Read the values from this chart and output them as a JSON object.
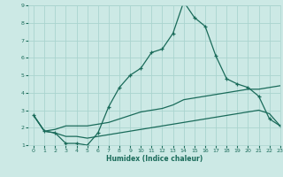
{
  "xlabel": "Humidex (Indice chaleur)",
  "bg_color": "#cce9e5",
  "grid_color": "#aad4cf",
  "line_color": "#1a6b5a",
  "xlim": [
    -0.5,
    23
  ],
  "ylim": [
    1,
    9
  ],
  "xticks": [
    0,
    1,
    2,
    3,
    4,
    5,
    6,
    7,
    8,
    9,
    10,
    11,
    12,
    13,
    14,
    15,
    16,
    17,
    18,
    19,
    20,
    21,
    22,
    23
  ],
  "yticks": [
    1,
    2,
    3,
    4,
    5,
    6,
    7,
    8,
    9
  ],
  "line1_x": [
    0,
    1,
    2,
    3,
    4,
    5,
    6,
    7,
    8,
    9,
    10,
    11,
    12,
    13,
    14,
    15,
    16,
    17,
    18,
    19,
    20,
    21,
    22,
    23
  ],
  "line1_y": [
    2.7,
    1.8,
    1.7,
    1.1,
    1.1,
    1.0,
    1.7,
    3.2,
    4.3,
    5.0,
    5.4,
    6.3,
    6.5,
    7.4,
    9.2,
    8.3,
    7.8,
    6.1,
    4.8,
    4.5,
    4.3,
    3.8,
    2.5,
    2.1
  ],
  "line2_x": [
    0,
    1,
    2,
    3,
    4,
    5,
    6,
    7,
    8,
    9,
    10,
    11,
    12,
    13,
    14,
    15,
    16,
    17,
    18,
    19,
    20,
    21,
    22,
    23
  ],
  "line2_y": [
    2.7,
    1.8,
    1.9,
    2.1,
    2.1,
    2.1,
    2.2,
    2.3,
    2.5,
    2.7,
    2.9,
    3.0,
    3.1,
    3.3,
    3.6,
    3.7,
    3.8,
    3.9,
    4.0,
    4.1,
    4.2,
    4.2,
    4.3,
    4.4
  ],
  "line3_x": [
    0,
    1,
    2,
    3,
    4,
    5,
    6,
    7,
    8,
    9,
    10,
    11,
    12,
    13,
    14,
    15,
    16,
    17,
    18,
    19,
    20,
    21,
    22,
    23
  ],
  "line3_y": [
    2.7,
    1.8,
    1.7,
    1.5,
    1.5,
    1.4,
    1.5,
    1.6,
    1.7,
    1.8,
    1.9,
    2.0,
    2.1,
    2.2,
    2.3,
    2.4,
    2.5,
    2.6,
    2.7,
    2.8,
    2.9,
    3.0,
    2.8,
    2.1
  ]
}
